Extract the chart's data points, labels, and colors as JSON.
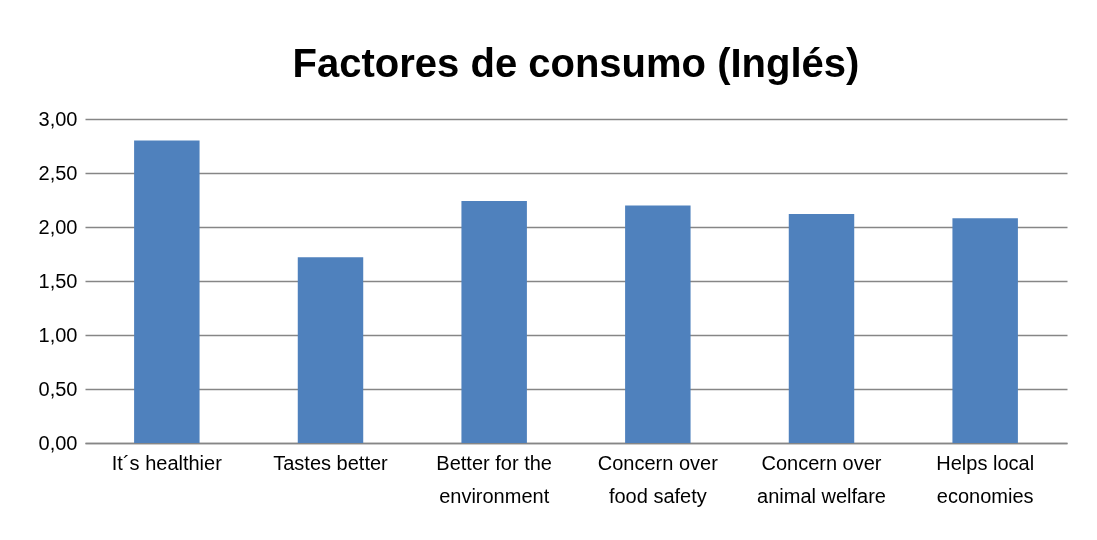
{
  "chart_data": {
    "type": "bar",
    "title": "Factores de consumo (Inglés)",
    "categories": [
      "It´s healthier",
      "Tastes better",
      "Better for the environment",
      "Concern over food safety",
      "Concern over animal welfare",
      "Helps local economies"
    ],
    "values": [
      2.8,
      1.72,
      2.24,
      2.2,
      2.12,
      2.08
    ],
    "color": "#4f81bd",
    "ylim": [
      0,
      3
    ],
    "yticks": [
      {
        "value": 0,
        "label": "0,00"
      },
      {
        "value": 0.5,
        "label": "0,50"
      },
      {
        "value": 1,
        "label": "1,00"
      },
      {
        "value": 1.5,
        "label": "1,50"
      },
      {
        "value": 2,
        "label": "2,00"
      },
      {
        "value": 2.5,
        "label": "2,50"
      },
      {
        "value": 3,
        "label": "3,00"
      }
    ],
    "grid": true
  }
}
